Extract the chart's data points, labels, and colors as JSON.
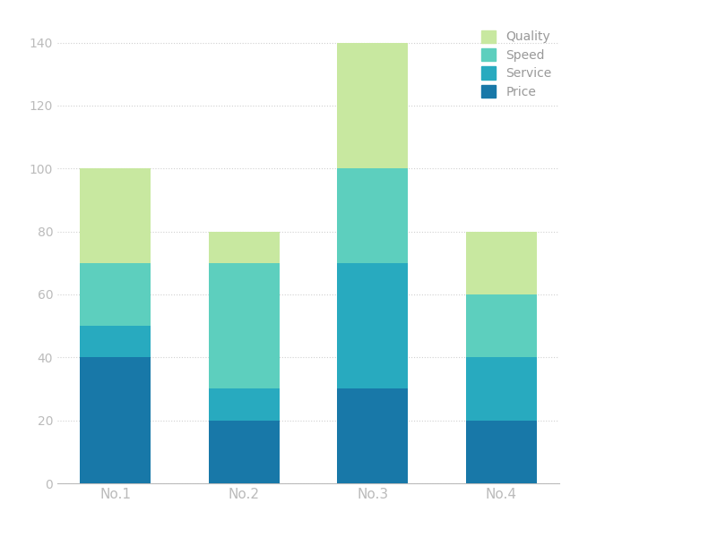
{
  "categories": [
    "No.1",
    "No.2",
    "No.3",
    "No.4"
  ],
  "series": {
    "Price": [
      40,
      20,
      30,
      20
    ],
    "Service": [
      10,
      10,
      40,
      20
    ],
    "Speed": [
      20,
      40,
      30,
      20
    ],
    "Quality": [
      30,
      10,
      40,
      20
    ]
  },
  "colors": {
    "Price": "#1878a8",
    "Service": "#28aabf",
    "Speed": "#5dcfbe",
    "Quality": "#c8e8a0"
  },
  "legend_order": [
    "Quality",
    "Speed",
    "Service",
    "Price"
  ],
  "ylim": [
    0,
    145
  ],
  "yticks": [
    0,
    20,
    40,
    60,
    80,
    100,
    120,
    140
  ],
  "bar_width": 0.55,
  "background_color": "#ffffff",
  "grid_color": "#d0d0d0",
  "tick_color": "#bbbbbb",
  "label_color": "#999999",
  "label_fontsize": 11,
  "tick_fontsize": 10,
  "legend_fontsize": 10
}
